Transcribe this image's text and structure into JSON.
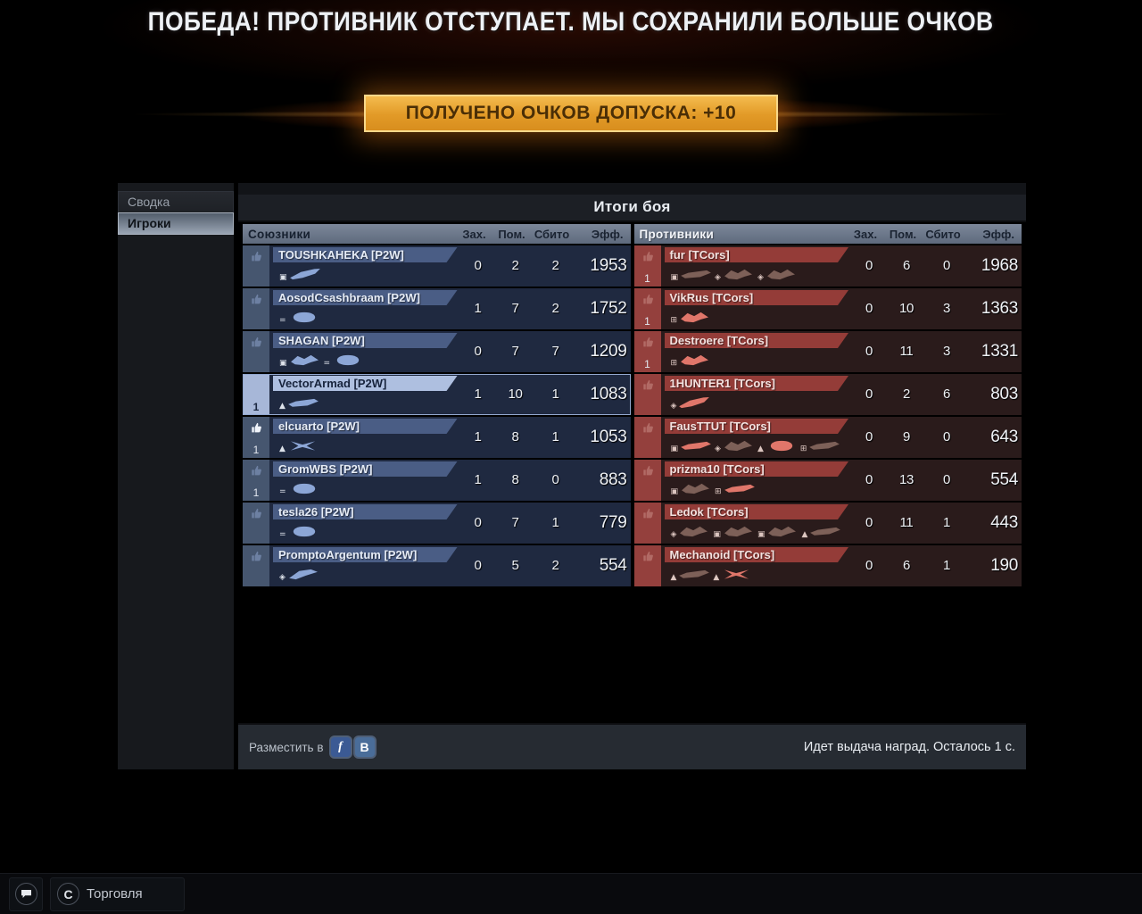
{
  "header": {
    "victory_text": "ПОБЕДА! ПРОТИВНИК ОТСТУПАЕТ. МЫ СОХРАНИЛИ БОЛЬШЕ ОЧКОВ",
    "reward_text": "ПОЛУЧЕНО ОЧКОВ ДОПУСКА: +10"
  },
  "sidebar": {
    "tabs": [
      {
        "label": "Сводка",
        "active": false
      },
      {
        "label": "Игроки",
        "active": true
      }
    ]
  },
  "panel": {
    "title": "Итоги боя",
    "columns": [
      "Зах.",
      "Пом.",
      "Сбито",
      "Эфф."
    ],
    "teams": [
      {
        "id": "allies",
        "header": "Союзники",
        "side": "ally",
        "rows": [
          {
            "name": "TOUSHKAHEKA [P2W]",
            "captured": 0,
            "assists": 2,
            "kills": 2,
            "eff": 1953,
            "thumb": "muted",
            "rank": "",
            "highlight": false,
            "ships": [
              {
                "shape": "interceptor",
                "tone": "bright",
                "sub": "▣"
              }
            ]
          },
          {
            "name": "AosodCsashbraam [P2W]",
            "captured": 1,
            "assists": 7,
            "kills": 2,
            "eff": 1752,
            "thumb": "muted",
            "rank": "",
            "highlight": false,
            "ships": [
              {
                "shape": "oval",
                "tone": "bright",
                "sub": "="
              }
            ]
          },
          {
            "name": "SHAGAN [P2W]",
            "captured": 0,
            "assists": 7,
            "kills": 7,
            "eff": 1209,
            "thumb": "muted",
            "rank": "",
            "highlight": false,
            "ships": [
              {
                "shape": "claw",
                "tone": "bright",
                "sub": "▣"
              },
              {
                "shape": "oval",
                "tone": "bright",
                "sub": "="
              }
            ]
          },
          {
            "name": "VectorArmad [P2W]",
            "captured": 1,
            "assists": 10,
            "kills": 1,
            "eff": 1083,
            "thumb": "none",
            "rank": "1",
            "highlight": true,
            "ships": [
              {
                "shape": "long",
                "tone": "bright",
                "sub": "▲"
              }
            ]
          },
          {
            "name": "elcuarto [P2W]",
            "captured": 1,
            "assists": 8,
            "kills": 1,
            "eff": 1053,
            "thumb": "bright",
            "rank": "1",
            "highlight": false,
            "ships": [
              {
                "shape": "cross",
                "tone": "bright",
                "sub": "▲"
              }
            ]
          },
          {
            "name": "GromWBS [P2W]",
            "captured": 1,
            "assists": 8,
            "kills": 0,
            "eff": 883,
            "thumb": "muted",
            "rank": "1",
            "highlight": false,
            "ships": [
              {
                "shape": "oval",
                "tone": "bright",
                "sub": "="
              }
            ]
          },
          {
            "name": "tesla26 [P2W]",
            "captured": 0,
            "assists": 7,
            "kills": 1,
            "eff": 779,
            "thumb": "muted",
            "rank": "",
            "highlight": false,
            "ships": [
              {
                "shape": "oval",
                "tone": "bright",
                "sub": "="
              }
            ]
          },
          {
            "name": "PromptoArgentum [P2W]",
            "captured": 0,
            "assists": 5,
            "kills": 2,
            "eff": 554,
            "thumb": "muted",
            "rank": "",
            "highlight": false,
            "ships": [
              {
                "shape": "angular",
                "tone": "bright",
                "sub": "◈"
              }
            ]
          }
        ]
      },
      {
        "id": "enemies",
        "header": "Противники",
        "side": "enemy",
        "rows": [
          {
            "name": "fur [TCors]",
            "captured": 0,
            "assists": 6,
            "kills": 0,
            "eff": 1968,
            "thumb": "muted",
            "rank": "1",
            "highlight": false,
            "ships": [
              {
                "shape": "long",
                "tone": "muted",
                "sub": "▣"
              },
              {
                "shape": "claw",
                "tone": "muted",
                "sub": "◈"
              },
              {
                "shape": "claw",
                "tone": "muted",
                "sub": "◈"
              }
            ]
          },
          {
            "name": "VikRus [TCors]",
            "captured": 0,
            "assists": 10,
            "kills": 3,
            "eff": 1363,
            "thumb": "muted",
            "rank": "1",
            "highlight": false,
            "ships": [
              {
                "shape": "claw",
                "tone": "bright",
                "sub": "⊞"
              }
            ]
          },
          {
            "name": "Destroere [TCors]",
            "captured": 0,
            "assists": 11,
            "kills": 3,
            "eff": 1331,
            "thumb": "muted",
            "rank": "1",
            "highlight": false,
            "ships": [
              {
                "shape": "claw",
                "tone": "bright",
                "sub": "⊞"
              }
            ]
          },
          {
            "name": "1HUNTER1 [TCors]",
            "captured": 0,
            "assists": 2,
            "kills": 6,
            "eff": 803,
            "thumb": "muted",
            "rank": "",
            "highlight": false,
            "ships": [
              {
                "shape": "interceptor",
                "tone": "bright",
                "sub": "◈"
              }
            ]
          },
          {
            "name": "FausTTUT [TCors]",
            "captured": 0,
            "assists": 9,
            "kills": 0,
            "eff": 643,
            "thumb": "muted",
            "rank": "",
            "highlight": false,
            "ships": [
              {
                "shape": "long",
                "tone": "bright",
                "sub": "▣"
              },
              {
                "shape": "claw",
                "tone": "muted",
                "sub": "◈"
              },
              {
                "shape": "oval",
                "tone": "bright",
                "sub": "▲"
              },
              {
                "shape": "long",
                "tone": "muted",
                "sub": "⊞"
              }
            ]
          },
          {
            "name": "prizma10 [TCors]",
            "captured": 0,
            "assists": 13,
            "kills": 0,
            "eff": 554,
            "thumb": "muted",
            "rank": "",
            "highlight": false,
            "ships": [
              {
                "shape": "claw",
                "tone": "muted",
                "sub": "▣"
              },
              {
                "shape": "long",
                "tone": "bright",
                "sub": "⊞"
              }
            ]
          },
          {
            "name": "Ledok [TCors]",
            "captured": 0,
            "assists": 11,
            "kills": 1,
            "eff": 443,
            "thumb": "muted",
            "rank": "",
            "highlight": false,
            "ships": [
              {
                "shape": "claw",
                "tone": "muted",
                "sub": "◈"
              },
              {
                "shape": "claw",
                "tone": "muted",
                "sub": "▣"
              },
              {
                "shape": "claw",
                "tone": "muted",
                "sub": "▣"
              },
              {
                "shape": "long",
                "tone": "muted",
                "sub": "▲"
              }
            ]
          },
          {
            "name": "Mechanoid [TCors]",
            "captured": 0,
            "assists": 6,
            "kills": 1,
            "eff": 190,
            "thumb": "muted",
            "rank": "",
            "highlight": false,
            "ships": [
              {
                "shape": "long",
                "tone": "muted",
                "sub": "▲"
              },
              {
                "shape": "cross",
                "tone": "bright",
                "sub": "▲"
              }
            ]
          }
        ]
      }
    ]
  },
  "footer": {
    "share_label": "Разместить в",
    "facebook_glyph": "f",
    "vk_glyph": "B",
    "status_text": "Идет выдача наград. Осталось 1 с."
  },
  "bottom_bar": {
    "trade_label": "Торговля"
  },
  "theme": {
    "ally_accent": "#4a5d85",
    "enemy_accent": "#943c38",
    "highlight_accent": "#aebfe0",
    "banner_orange": "#e29a27",
    "gold_border": "#f8d88a"
  }
}
